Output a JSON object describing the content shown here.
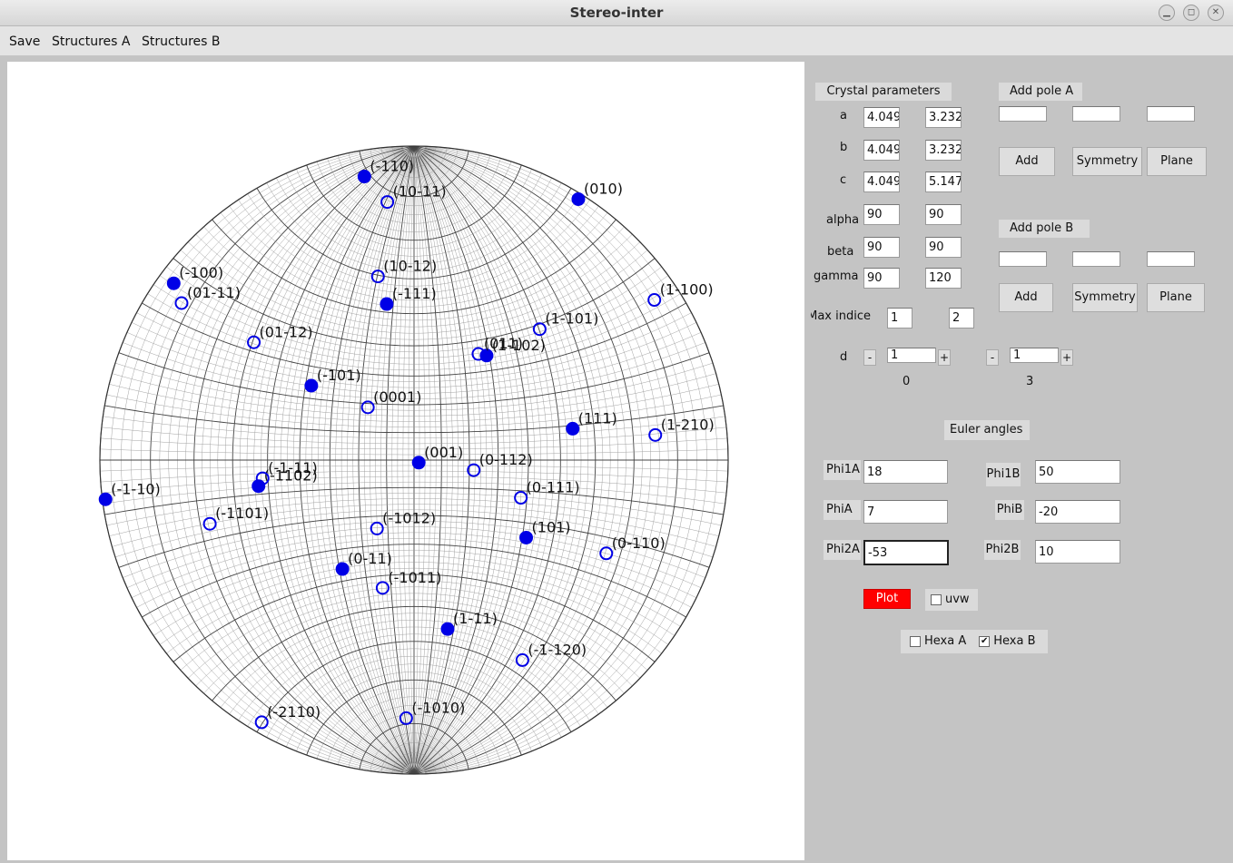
{
  "window": {
    "title": "Stereo-inter"
  },
  "menu": {
    "items": [
      "Save",
      "Structures A",
      "Structures B"
    ]
  },
  "chart_data": {
    "type": "scatter",
    "poles_filled": [
      {
        "label": "(-110)",
        "x": -0.158,
        "y": 0.903
      },
      {
        "label": "(010)",
        "x": 0.523,
        "y": 0.831
      },
      {
        "label": "(-100)",
        "x": -0.765,
        "y": 0.563
      },
      {
        "label": "(-111)",
        "x": -0.087,
        "y": 0.497
      },
      {
        "label": "(1-102)",
        "x": 0.231,
        "y": 0.333
      },
      {
        "label": "(-101)",
        "x": -0.327,
        "y": 0.237
      },
      {
        "label": "(111)",
        "x": 0.505,
        "y": 0.1
      },
      {
        "label": "(001)",
        "x": 0.015,
        "y": -0.008
      },
      {
        "label": "(-1-10)",
        "x": -0.982,
        "y": -0.125
      },
      {
        "label": "(-1102)",
        "x": -0.495,
        "y": -0.083
      },
      {
        "label": "(101)",
        "x": 0.357,
        "y": -0.247
      },
      {
        "label": "(0-11)",
        "x": -0.228,
        "y": -0.347
      },
      {
        "label": "(1-11)",
        "x": 0.107,
        "y": -0.538
      }
    ],
    "poles_open": [
      {
        "label": "(10-11)",
        "x": -0.085,
        "y": 0.822
      },
      {
        "label": "(10-12)",
        "x": -0.115,
        "y": 0.585
      },
      {
        "label": "(01-11)",
        "x": -0.74,
        "y": 0.5
      },
      {
        "label": "(1-100)",
        "x": 0.765,
        "y": 0.51
      },
      {
        "label": "(1-101)",
        "x": 0.4,
        "y": 0.417
      },
      {
        "label": "(01-12)",
        "x": -0.51,
        "y": 0.375
      },
      {
        "label": "(011)",
        "x": 0.205,
        "y": 0.338
      },
      {
        "label": "(0001)",
        "x": -0.147,
        "y": 0.168
      },
      {
        "label": "(1-210)",
        "x": 0.768,
        "y": 0.08
      },
      {
        "label": "(0-112)",
        "x": 0.19,
        "y": -0.032
      },
      {
        "label": "(-1-11)",
        "x": -0.482,
        "y": -0.058
      },
      {
        "label": "(0-111)",
        "x": 0.34,
        "y": -0.12
      },
      {
        "label": "(-1101)",
        "x": -0.65,
        "y": -0.203
      },
      {
        "label": "(-1012)",
        "x": -0.118,
        "y": -0.218
      },
      {
        "label": "(0-110)",
        "x": 0.612,
        "y": -0.297
      },
      {
        "label": "(-1011)",
        "x": -0.1,
        "y": -0.407
      },
      {
        "label": "(-1-120)",
        "x": 0.345,
        "y": -0.637
      },
      {
        "label": "(-2110)",
        "x": -0.485,
        "y": -0.835
      },
      {
        "label": "(-1010)",
        "x": -0.025,
        "y": -0.822
      }
    ]
  },
  "panel": {
    "crystal_parameters": "Crystal parameters",
    "a_label": "a",
    "a_A": "4.049",
    "a_B": "3.232",
    "b_label": "b",
    "b_A": "4.049",
    "b_B": "3.232",
    "c_label": "c",
    "c_A": "4.049",
    "c_B": "5.147",
    "alpha_label": "alpha",
    "alpha_A": "90",
    "alpha_B": "90",
    "beta_label": "beta",
    "beta_A": "90",
    "beta_B": "90",
    "gamma_label": "gamma",
    "gamma_A": "90",
    "gamma_B": "120",
    "max_indice_label": "Max indice",
    "max_A": "1",
    "max_B": "2",
    "d_label": "d",
    "d_A": {
      "minus": "-",
      "value": "1",
      "plus": "+",
      "readout": "0"
    },
    "d_B": {
      "minus": "-",
      "value": "1",
      "plus": "+",
      "readout": "3"
    },
    "add_pole_A": "Add pole A",
    "add_pole_B": "Add pole B",
    "add_label": "Add",
    "symmetry_label": "Symmetry",
    "plane_label": "Plane",
    "euler_angles": "Euler angles",
    "phi1A_label": "Phi1A",
    "phi1A": "18",
    "phiA_label": "PhiA",
    "phiA": "7",
    "phi2A_label": "Phi2A",
    "phi2A": "-53",
    "phi1B_label": "Phi1B",
    "phi1B": "50",
    "phiB_label": "PhiB",
    "phiB": "-20",
    "phi2B_label": "Phi2B",
    "phi2B": "10",
    "plot_label": "Plot",
    "uvw_label": "uvw",
    "hexaA_label": "Hexa A",
    "hexaB_label": "Hexa B",
    "hexaB_checked": true,
    "plot_color": "#ff0000",
    "pole_color": "#0000e6"
  }
}
